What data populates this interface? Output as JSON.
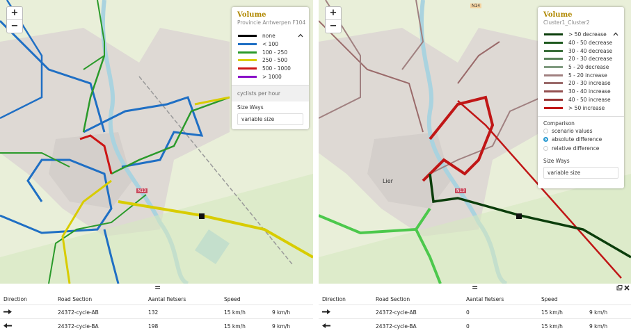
{
  "left_panel": {
    "zoom_in": "+",
    "zoom_out": "−",
    "map_labels": [
      "N13"
    ],
    "legend": {
      "title": "Volume",
      "subtitle": "Provincie Antwerpen F104",
      "entries": [
        {
          "label": "none",
          "color": "#000000"
        },
        {
          "label": "< 100",
          "color": "#1f6fc4"
        },
        {
          "label": "100 - 250",
          "color": "#2a9a2a"
        },
        {
          "label": "250 - 500",
          "color": "#d8cc00"
        },
        {
          "label": "500 - 1000",
          "color": "#cc1414"
        },
        {
          "label": "> 1000",
          "color": "#8a12c8"
        }
      ],
      "unit": "cyclists per hour",
      "size_label": "Size Ways",
      "size_value": "variable size"
    },
    "table": {
      "columns": [
        "Direction",
        "Road Section",
        "Aantal fietsers",
        "Speed"
      ],
      "rows": [
        {
          "section": "24372-cycle-AB",
          "count": 132,
          "speed": "15 km/h",
          "speed2": "9 km/h"
        },
        {
          "section": "24372-cycle-BA",
          "count": 198,
          "speed": "15 km/h",
          "speed2": "9 km/h"
        }
      ]
    }
  },
  "right_panel": {
    "zoom_in": "+",
    "zoom_out": "−",
    "map_labels": [
      "N14",
      "Lier",
      "N13"
    ],
    "legend": {
      "title": "Volume",
      "subtitle": "Cluster1_Cluster2",
      "entries": [
        {
          "label": "> 50 decrease",
          "color": "#0b3d0b"
        },
        {
          "label": "40 - 50 decrease",
          "color": "#1f5a1f"
        },
        {
          "label": "30 - 40 decrease",
          "color": "#3a6e3a"
        },
        {
          "label": "20 - 30 decrease",
          "color": "#5a825a"
        },
        {
          "label": "5 - 20 decrease",
          "color": "#7f9a7f"
        },
        {
          "label": "5 - 20 increase",
          "color": "#a08080"
        },
        {
          "label": "20 - 30 increase",
          "color": "#9a6a6a"
        },
        {
          "label": "30 - 40 increase",
          "color": "#945050"
        },
        {
          "label": "40 - 50 increase",
          "color": "#993333"
        },
        {
          "label": "> 50 increase",
          "color": "#c01616"
        }
      ],
      "comparison": {
        "title": "Comparison",
        "options": [
          {
            "label": "scenario values",
            "selected": false
          },
          {
            "label": "absolute difference",
            "selected": true
          },
          {
            "label": "relative difference",
            "selected": false
          }
        ]
      },
      "size_label": "Size Ways",
      "size_value": "variable size"
    },
    "table": {
      "columns": [
        "Direction",
        "Road Section",
        "Aantal fietsers",
        "Speed"
      ],
      "rows": [
        {
          "section": "24372-cycle-AB",
          "count": 0,
          "speed": "15 km/h",
          "speed2": "9 km/h"
        },
        {
          "section": "24372-cycle-BA",
          "count": 0,
          "speed": "15 km/h",
          "speed2": "9 km/h"
        }
      ]
    }
  }
}
